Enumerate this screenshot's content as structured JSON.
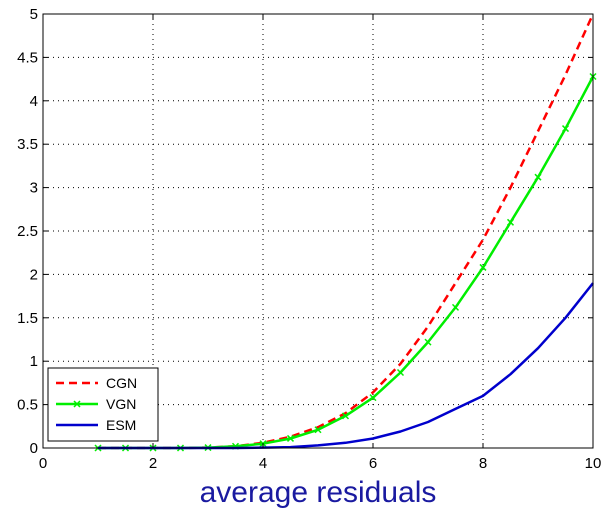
{
  "chart_data": {
    "type": "line",
    "title": "",
    "xlabel": "average residuals",
    "ylabel": "",
    "xlim": [
      0,
      10
    ],
    "ylim": [
      0,
      5
    ],
    "xticks": [
      0,
      2,
      4,
      6,
      8,
      10
    ],
    "yticks": [
      0,
      0.5,
      1,
      1.5,
      2,
      2.5,
      3,
      3.5,
      4,
      4.5,
      5
    ],
    "grid": true,
    "legend_position": "bottom-left",
    "series": [
      {
        "name": "CGN",
        "color": "#ff0000",
        "style": "dashed",
        "marker": "none",
        "x": [
          1,
          1.5,
          2,
          2.5,
          3,
          3.5,
          4,
          4.5,
          5,
          5.5,
          6,
          6.5,
          7,
          7.5,
          8,
          8.5,
          9,
          9.5,
          10
        ],
        "y": [
          0,
          0,
          0,
          0,
          0.005,
          0.02,
          0.06,
          0.13,
          0.24,
          0.4,
          0.64,
          0.97,
          1.4,
          1.9,
          2.4,
          3.0,
          3.65,
          4.3,
          5.0
        ]
      },
      {
        "name": "VGN",
        "color": "#00ee00",
        "style": "solid",
        "marker": "x",
        "x": [
          1,
          1.5,
          2,
          2.5,
          3,
          3.5,
          4,
          4.5,
          5,
          5.5,
          6,
          6.5,
          7,
          7.5,
          8,
          8.5,
          9,
          9.5,
          10
        ],
        "y": [
          0,
          0,
          0,
          0,
          0.005,
          0.02,
          0.05,
          0.11,
          0.21,
          0.37,
          0.58,
          0.87,
          1.22,
          1.62,
          2.08,
          2.6,
          3.12,
          3.68,
          4.28
        ]
      },
      {
        "name": "ESM",
        "color": "#0000cc",
        "style": "solid",
        "marker": "none",
        "x": [
          1,
          1.5,
          2,
          2.5,
          3,
          3.5,
          4,
          4.5,
          5,
          5.5,
          6,
          6.5,
          7,
          7.5,
          8,
          8.5,
          9,
          9.5,
          10
        ],
        "y": [
          0,
          0,
          0,
          0,
          0,
          0,
          0.005,
          0.01,
          0.03,
          0.06,
          0.11,
          0.19,
          0.3,
          0.45,
          0.6,
          0.85,
          1.15,
          1.5,
          1.9
        ]
      }
    ]
  }
}
